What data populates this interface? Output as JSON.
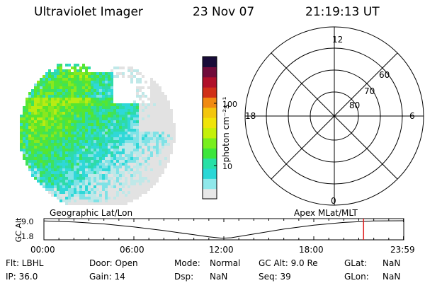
{
  "header": {
    "instrument": "Ultraviolet Imager",
    "date": "23 Nov 07",
    "time": "21:19:13 UT"
  },
  "colors": {
    "colorbar": [
      "#e8e8e8",
      "#8fe8ea",
      "#2ad7d6",
      "#28e0a6",
      "#3de63c",
      "#78ee1e",
      "#c5f00a",
      "#f0e40a",
      "#f3c60e",
      "#f08a12",
      "#d03018",
      "#b0102a",
      "#700b3a",
      "#180b38"
    ],
    "image_palette": [
      "#e2e2e2",
      "#bfe8e8",
      "#7fe2e6",
      "#2fd8d8",
      "#2edba8",
      "#3ee35a",
      "#56e630",
      "#8ae81e",
      "#b9ec12"
    ],
    "ephemeris_marker": "#e02020"
  },
  "chart_data": [
    {
      "type": "heatmap",
      "title": "",
      "colorbar": {
        "label": "photon cm⁻²s⁻¹",
        "scale": "log",
        "range": [
          2.5,
          350
        ],
        "ticks": [
          "100",
          "10"
        ]
      }
    },
    {
      "type": "polar-grid",
      "title": "",
      "mlt_labels": [
        "12",
        "6",
        "0",
        "18"
      ],
      "mlat_labels": [
        "60",
        "70",
        "80"
      ],
      "mlat_rings": [
        50,
        60,
        70,
        80
      ]
    },
    {
      "type": "line",
      "title": "",
      "left_label": "Geographic Lat/Lon",
      "right_label": "Apex MLat/MLT",
      "ylabel": "GC Alt",
      "yticks": [
        "9.0",
        "1.8"
      ],
      "xticks": [
        "00:00",
        "06:00",
        "12:00",
        "18:00",
        "23:59"
      ],
      "ylim": [
        1.8,
        9.0
      ],
      "x": [
        0,
        2,
        4,
        6,
        8,
        10,
        11,
        11.9,
        12.5,
        14,
        16,
        18,
        20,
        22,
        23.98
      ],
      "y": [
        8.9,
        8.5,
        7.7,
        6.5,
        5.0,
        3.3,
        2.45,
        1.85,
        2.1,
        3.6,
        5.6,
        7.2,
        8.3,
        8.9,
        9.0
      ],
      "marker_x": 21.32
    }
  ],
  "meta": {
    "filter": "Flt: LBHL",
    "ip": "IP: 36.0",
    "door": "Door: Open",
    "gain": "Gain: 14",
    "mode_label": "Mode:",
    "mode_value": "Normal",
    "dsp_label": "Dsp:",
    "dsp_value": "NaN",
    "gcalt": "GC Alt: 9.0 Re",
    "seq": "Seq: 39",
    "glat_label": "GLat:",
    "glat_value": "NaN",
    "glon_label": "GLon:",
    "glon_value": "NaN"
  }
}
